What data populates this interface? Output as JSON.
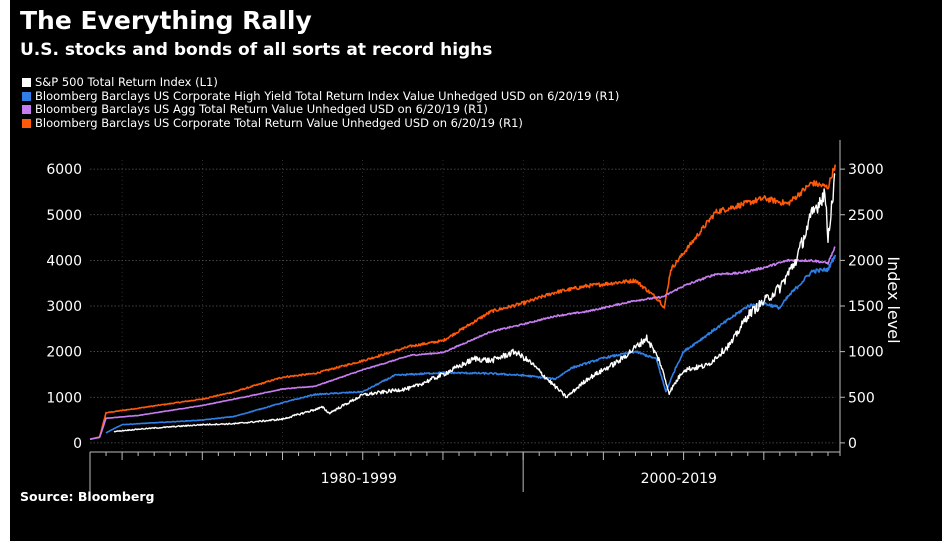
{
  "title": "The Everything Rally",
  "subtitle": "U.S. stocks and bonds of all sorts at record highs",
  "source": "Source: Bloomberg",
  "colors": {
    "background": "#000000",
    "sp500": "#ffffff",
    "high_yield": "#2f7fe6",
    "agg": "#c77df2",
    "corporate": "#ff5a0a",
    "grid": "#5a5a5a",
    "text": "#ffffff"
  },
  "chart_data": {
    "type": "line",
    "legend_position": "top-left",
    "x_categories": [
      "1980-1999",
      "2000-2019"
    ],
    "xlim": [
      1973,
      2019.5
    ],
    "y_left": {
      "ticks": [
        0,
        1000,
        2000,
        3000,
        4000,
        5000,
        6000
      ],
      "ylim": [
        -200,
        6200
      ]
    },
    "y_right": {
      "label": "Index level",
      "ticks": [
        0,
        500,
        1000,
        1500,
        2000,
        2500,
        3000
      ],
      "ylim": [
        -100,
        3100
      ]
    },
    "grid": true,
    "series": [
      {
        "name": "Bloomberg Barclays US Corporate Total Return Value Unhedged USD  on 6/20/19 (R1)",
        "key": "corporate",
        "axis": "right",
        "x": [
          1973,
          1973.6,
          1974,
          1976,
          1980,
          1982,
          1985,
          1987,
          1990,
          1993,
          1995,
          1998,
          2000,
          2002,
          2004,
          2007,
          2008.5,
          2008.8,
          2009.2,
          2010,
          2012,
          2015,
          2016.5,
          2018,
          2019,
          2019.45
        ],
        "y": [
          40,
          65,
          330,
          380,
          480,
          560,
          720,
          760,
          900,
          1060,
          1120,
          1440,
          1530,
          1650,
          1720,
          1780,
          1560,
          1480,
          1900,
          2080,
          2530,
          2680,
          2620,
          2850,
          2800,
          3050
        ]
      },
      {
        "name": "Bloomberg Barclays US Agg Total Return Value Unhedged USD  on 6/20/19 (R1)",
        "key": "agg",
        "axis": "right",
        "x": [
          1973,
          1973.6,
          1974,
          1976,
          1980,
          1982,
          1985,
          1987,
          1990,
          1993,
          1995,
          1998,
          2000,
          2002,
          2004,
          2007,
          2008.7,
          2010,
          2012,
          2013.5,
          2015,
          2016.5,
          2018,
          2019,
          2019.45
        ],
        "y": [
          40,
          60,
          270,
          300,
          410,
          480,
          590,
          620,
          800,
          960,
          990,
          1220,
          1300,
          1390,
          1440,
          1560,
          1600,
          1720,
          1850,
          1860,
          1920,
          2000,
          2000,
          1970,
          2150
        ]
      },
      {
        "name": "Bloomberg Barclays US Corporate High Yield Total Return Index Value Unhedged USD  on 6/20/19 (R1)",
        "key": "high_yield",
        "axis": "right",
        "x": [
          1974,
          1975,
          1976,
          1980,
          1982,
          1985,
          1987,
          1990,
          1992,
          1995,
          1998,
          2000,
          2002,
          2003,
          2005,
          2007,
          2008.3,
          2008.9,
          2009.5,
          2010,
          2012,
          2014,
          2015,
          2016,
          2016.5,
          2018,
          2019,
          2019.45
        ],
        "y": [
          110,
          200,
          210,
          250,
          290,
          440,
          530,
          560,
          740,
          770,
          760,
          740,
          700,
          820,
          930,
          1000,
          920,
          560,
          820,
          1000,
          1250,
          1500,
          1530,
          1480,
          1600,
          1880,
          1900,
          2060
        ]
      },
      {
        "name": "S&P 500 Total Return Index  (L1)",
        "key": "sp500",
        "axis": "left",
        "x": [
          1974.5,
          1976,
          1980,
          1982,
          1985,
          1987.5,
          1987.9,
          1990,
          1993,
          1995,
          1997,
          1998,
          1999.5,
          2000.5,
          2001.5,
          2002.7,
          2004,
          2006,
          2007.7,
          2008.5,
          2009.1,
          2010,
          2011.5,
          2013,
          2014,
          2016,
          2017,
          2018,
          2018.8,
          2019,
          2019.45
        ],
        "y": [
          250,
          300,
          400,
          420,
          520,
          780,
          650,
          1050,
          1200,
          1500,
          1850,
          1800,
          2000,
          1750,
          1400,
          1000,
          1400,
          1800,
          2300,
          1800,
          1100,
          1600,
          1700,
          2200,
          2800,
          3400,
          4000,
          5000,
          5500,
          4500,
          5900
        ]
      }
    ]
  }
}
